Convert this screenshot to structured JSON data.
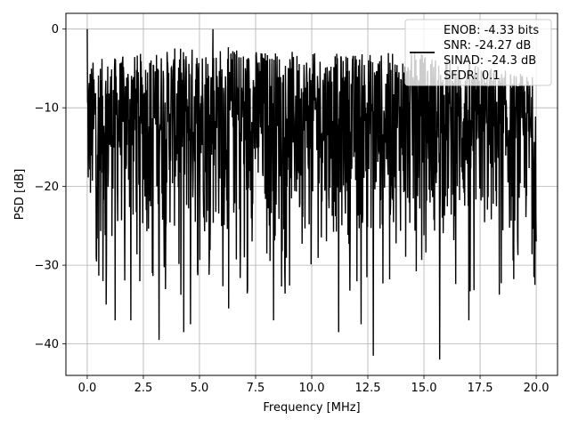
{
  "chart_data": {
    "type": "line",
    "title": "",
    "xlabel": "Frequency [MHz]",
    "ylabel": "PSD [dB]",
    "xlim": [
      -0.95,
      20.95
    ],
    "ylim": [
      -44.0,
      2.0
    ],
    "xticks": [
      0.0,
      2.5,
      5.0,
      7.5,
      10.0,
      12.5,
      15.0,
      17.5,
      20.0
    ],
    "xtick_labels": [
      "0.0",
      "2.5",
      "5.0",
      "7.5",
      "10.0",
      "12.5",
      "15.0",
      "17.5",
      "20.0"
    ],
    "yticks": [
      0,
      -10,
      -20,
      -30,
      -40
    ],
    "ytick_labels": [
      "0",
      "−10",
      "−20",
      "−30",
      "−40"
    ],
    "grid": true,
    "legend_position": "top-right",
    "line_color": "#000000",
    "series": [
      {
        "legend_lines": [
          "ENOB: -4.33 bits",
          "SNR: -24.27 dB",
          "SINAD: -24.3 dB",
          "SFDR: 0.1"
        ],
        "envelope_note_points": [
          {
            "x": 0.0,
            "y": 0.0
          },
          {
            "x": 0.05,
            "y": -15.5
          },
          {
            "x": 0.2,
            "y": -6.5
          },
          {
            "x": 0.4,
            "y": -29.0
          },
          {
            "x": 0.7,
            "y": -32.0
          },
          {
            "x": 0.85,
            "y": -35.0
          },
          {
            "x": 1.25,
            "y": -37.0
          },
          {
            "x": 1.95,
            "y": -37.0
          },
          {
            "x": 2.9,
            "y": -31.0
          },
          {
            "x": 3.2,
            "y": -39.5
          },
          {
            "x": 4.3,
            "y": -38.5
          },
          {
            "x": 4.6,
            "y": -37.5
          },
          {
            "x": 5.6,
            "y": 0.0
          },
          {
            "x": 6.3,
            "y": -35.5
          },
          {
            "x": 7.0,
            "y": -29.0
          },
          {
            "x": 8.0,
            "y": -28.5
          },
          {
            "x": 8.3,
            "y": -37.0
          },
          {
            "x": 11.2,
            "y": -38.5
          },
          {
            "x": 12.2,
            "y": -37.5
          },
          {
            "x": 12.75,
            "y": -41.5
          },
          {
            "x": 15.7,
            "y": -42.0
          },
          {
            "x": 17.0,
            "y": -37.0
          },
          {
            "x": 19.95,
            "y": -32.5
          }
        ],
        "baseline_level": -14.0,
        "x_range": [
          0.0,
          20.0
        ],
        "upper_envelope": [
          [
            0.0,
            -4.0
          ],
          [
            5.0,
            -2.0
          ],
          [
            10.0,
            -3.0
          ],
          [
            15.0,
            -3.0
          ],
          [
            20.0,
            -6.0
          ]
        ],
        "lower_envelope": [
          [
            0.0,
            -28.0
          ],
          [
            5.0,
            -28.0
          ],
          [
            10.0,
            -28.0
          ],
          [
            15.0,
            -28.0
          ],
          [
            20.0,
            -28.0
          ]
        ]
      }
    ]
  }
}
